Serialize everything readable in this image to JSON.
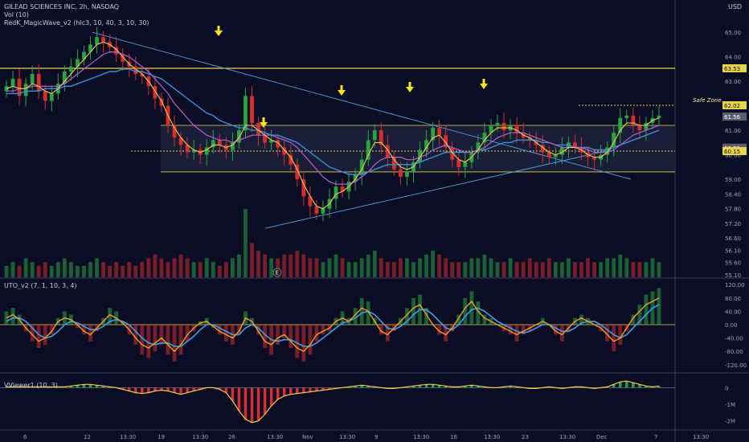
{
  "header": {
    "title": "GILEAD SCIENCES INC, 2h, NASDAQ",
    "indicator_vol": "Vol (10)",
    "indicator_wave": "RedK_MagicWave_v2 (hlc3, 10, 40, 3, 10, 30)",
    "currency": "USD"
  },
  "colors": {
    "background": "#0b0d24",
    "up": "#26a641",
    "down": "#d62d2d",
    "yellow_line": "#e8d44a",
    "trend": "#4aa3df",
    "wave_fast": "#f2c94c",
    "wave_slow": "#b65fcf",
    "wave_mid": "#3a8fd8"
  },
  "chart_data": [
    {
      "type": "candlestick",
      "panel": "price",
      "x_ticks": [
        "6",
        "12",
        "13:30",
        "19",
        "13:30",
        "26",
        "13:30",
        "Nov",
        "13:30",
        "9",
        "13:30",
        "16",
        "13:30",
        "23",
        "13:30",
        "Dec",
        "7",
        "13:30"
      ],
      "y_ticks": [
        "65.00",
        "64.00",
        "63.00",
        "62.00",
        "61.00",
        "60.00",
        "59.00",
        "58.40",
        "57.80",
        "57.20",
        "56.60",
        "56.10",
        "55.60",
        "55.10"
      ],
      "ylim": [
        55.0,
        65.4
      ],
      "price_tags": [
        {
          "label": "63.53",
          "value": 63.53,
          "style": "solid"
        },
        {
          "label": "62.02",
          "value": 62.02,
          "style": "dotted"
        },
        {
          "label": "61.56",
          "value": 61.56,
          "style": "tag"
        },
        {
          "label": "60.29",
          "value": 60.29,
          "style": "tag"
        },
        {
          "label": "60.15",
          "value": 60.15,
          "style": "dotted"
        }
      ],
      "annotation": "Safe Zone",
      "vol_marker": "E",
      "close_series": [
        62.8,
        63.1,
        62.4,
        62.9,
        63.3,
        62.6,
        62.2,
        62.5,
        62.9,
        63.4,
        63.6,
        63.9,
        64.2,
        64.5,
        64.8,
        64.6,
        64.4,
        64.1,
        63.8,
        63.6,
        63.3,
        63.2,
        62.8,
        62.3,
        62.0,
        61.2,
        60.7,
        60.4,
        60.1,
        60.2,
        60.0,
        60.3,
        60.6,
        60.4,
        60.2,
        60.5,
        61.0,
        62.4,
        61.3,
        60.8,
        60.5,
        60.6,
        60.3,
        60.0,
        59.6,
        59.0,
        58.3,
        57.9,
        57.6,
        57.8,
        58.2,
        58.7,
        58.5,
        58.9,
        59.2,
        59.8,
        60.6,
        61.0,
        60.4,
        59.9,
        59.4,
        59.1,
        59.3,
        59.7,
        60.2,
        60.6,
        61.1,
        60.8,
        60.3,
        59.8,
        59.5,
        59.7,
        60.1,
        60.5,
        60.9,
        61.2,
        61.3,
        61.0,
        61.2,
        60.9,
        60.7,
        60.6,
        60.4,
        60.1,
        59.9,
        60.0,
        60.3,
        60.5,
        60.3,
        60.1,
        59.9,
        59.8,
        60.0,
        60.3,
        60.9,
        61.5,
        61.6,
        61.2,
        61.0,
        61.3,
        61.5,
        61.6
      ],
      "ma_fast": [
        62.7,
        62.8,
        62.7,
        62.7,
        62.9,
        62.8,
        62.6,
        62.5,
        62.7,
        63.0,
        63.3,
        63.6,
        63.9,
        64.2,
        64.5,
        64.6,
        64.5,
        64.3,
        64.0,
        63.7,
        63.5,
        63.3,
        63.0,
        62.6,
        62.2,
        61.6,
        61.1,
        60.7,
        60.4,
        60.2,
        60.1,
        60.2,
        60.4,
        60.4,
        60.3,
        60.4,
        60.7,
        61.2,
        61.2,
        61.0,
        60.8,
        60.6,
        60.5,
        60.2,
        59.9,
        59.4,
        58.8,
        58.3,
        57.9,
        57.8,
        58.0,
        58.4,
        58.5,
        58.7,
        59.0,
        59.4,
        60.0,
        60.5,
        60.5,
        60.2,
        59.8,
        59.5,
        59.4,
        59.5,
        59.9,
        60.3,
        60.7,
        60.8,
        60.5,
        60.1,
        59.8,
        59.7,
        59.9,
        60.2,
        60.6,
        60.9,
        61.1,
        61.1,
        61.1,
        61.0,
        60.8,
        60.7,
        60.5,
        60.3,
        60.1,
        60.0,
        60.1,
        60.3,
        60.3,
        60.2,
        60.0,
        59.9,
        59.9,
        60.1,
        60.5,
        61.0,
        61.3,
        61.3,
        61.2,
        61.2,
        61.4,
        61.5
      ],
      "ma_slow": [
        62.6,
        62.6,
        62.7,
        62.7,
        62.8,
        62.8,
        62.8,
        62.8,
        62.8,
        62.9,
        63.1,
        63.3,
        63.5,
        63.7,
        63.9,
        64.1,
        64.2,
        64.2,
        64.1,
        64.0,
        63.8,
        63.6,
        63.4,
        63.1,
        62.8,
        62.5,
        62.1,
        61.8,
        61.5,
        61.2,
        61.0,
        60.8,
        60.7,
        60.6,
        60.6,
        60.5,
        60.6,
        60.7,
        60.8,
        60.8,
        60.8,
        60.8,
        60.7,
        60.6,
        60.5,
        60.3,
        60.0,
        59.7,
        59.4,
        59.1,
        58.9,
        58.8,
        58.8,
        58.8,
        58.9,
        59.1,
        59.3,
        59.6,
        59.8,
        59.9,
        59.9,
        59.9,
        59.8,
        59.8,
        59.9,
        60.0,
        60.2,
        60.3,
        60.4,
        60.3,
        60.2,
        60.1,
        60.1,
        60.2,
        60.3,
        60.5,
        60.7,
        60.8,
        60.9,
        60.9,
        60.9,
        60.8,
        60.7,
        60.6,
        60.5,
        60.4,
        60.3,
        60.3,
        60.3,
        60.3,
        60.2,
        60.1,
        60.1,
        60.1,
        60.2,
        60.4,
        60.6,
        60.8,
        60.9,
        61.0,
        61.1,
        61.2
      ],
      "ma_mid": [
        62.5,
        62.5,
        62.5,
        62.6,
        62.6,
        62.6,
        62.7,
        62.7,
        62.7,
        62.8,
        62.8,
        62.9,
        63.0,
        63.1,
        63.2,
        63.3,
        63.4,
        63.4,
        63.5,
        63.5,
        63.4,
        63.4,
        63.3,
        63.2,
        63.1,
        62.9,
        62.7,
        62.5,
        62.3,
        62.1,
        61.9,
        61.7,
        61.6,
        61.4,
        61.3,
        61.2,
        61.1,
        61.1,
        61.0,
        61.0,
        60.9,
        60.8,
        60.8,
        60.7,
        60.6,
        60.5,
        60.3,
        60.1,
        59.9,
        59.7,
        59.5,
        59.4,
        59.3,
        59.2,
        59.2,
        59.2,
        59.3,
        59.4,
        59.5,
        59.6,
        59.6,
        59.6,
        59.6,
        59.6,
        59.7,
        59.8,
        59.9,
        60.0,
        60.1,
        60.1,
        60.1,
        60.1,
        60.1,
        60.2,
        60.2,
        60.3,
        60.4,
        60.5,
        60.5,
        60.6,
        60.6,
        60.6,
        60.6,
        60.5,
        60.5,
        60.4,
        60.4,
        60.4,
        60.3,
        60.3,
        60.3,
        60.2,
        60.2,
        60.2,
        60.3,
        60.4,
        60.5,
        60.6,
        60.7,
        60.8,
        60.9,
        61.0
      ]
    },
    {
      "type": "bar",
      "panel": "volume",
      "values": [
        3,
        4,
        3,
        5,
        4,
        3,
        4,
        3,
        4,
        5,
        4,
        3,
        3,
        4,
        5,
        4,
        3,
        4,
        3,
        4,
        3,
        4,
        5,
        6,
        5,
        4,
        5,
        6,
        5,
        4,
        4,
        5,
        4,
        3,
        4,
        5,
        6,
        18,
        9,
        7,
        6,
        5,
        5,
        6,
        6,
        7,
        6,
        5,
        5,
        4,
        5,
        6,
        5,
        4,
        4,
        5,
        6,
        7,
        5,
        4,
        4,
        5,
        5,
        4,
        5,
        6,
        7,
        6,
        5,
        4,
        4,
        4,
        5,
        5,
        6,
        5,
        4,
        4,
        5,
        4,
        4,
        5,
        4,
        4,
        5,
        4,
        4,
        5,
        4,
        4,
        5,
        4,
        4,
        5,
        5,
        6,
        5,
        4,
        4,
        4,
        5,
        4
      ]
    },
    {
      "type": "area",
      "panel": "UTO_v2",
      "title": "UTO_v2 (7, 1, 10, 3, 4)",
      "y_ticks": [
        "120.00",
        "80.00",
        "40.00",
        "0.00",
        "-40.00",
        "-80.00",
        "-120.00"
      ],
      "ylim": [
        -135,
        135
      ],
      "fast": [
        20,
        30,
        15,
        -10,
        -30,
        -50,
        -40,
        -20,
        10,
        20,
        15,
        0,
        -20,
        -30,
        -10,
        10,
        30,
        20,
        5,
        -15,
        -40,
        -60,
        -70,
        -55,
        -40,
        -60,
        -80,
        -60,
        -30,
        -10,
        5,
        10,
        -5,
        -20,
        -30,
        -40,
        -20,
        20,
        10,
        -20,
        -50,
        -60,
        -40,
        -30,
        -50,
        -70,
        -80,
        -60,
        -30,
        -20,
        -10,
        10,
        20,
        10,
        30,
        50,
        40,
        10,
        -20,
        -30,
        -10,
        10,
        30,
        50,
        60,
        30,
        0,
        -20,
        -30,
        -10,
        20,
        50,
        70,
        40,
        20,
        10,
        0,
        -10,
        -20,
        -30,
        -20,
        -10,
        0,
        10,
        0,
        -20,
        -30,
        -10,
        10,
        20,
        10,
        0,
        -10,
        -30,
        -50,
        -40,
        -10,
        20,
        40,
        60,
        70,
        80
      ],
      "slow": [
        10,
        20,
        20,
        10,
        -10,
        -30,
        -40,
        -35,
        -20,
        0,
        10,
        5,
        -5,
        -15,
        -15,
        -5,
        10,
        15,
        10,
        0,
        -20,
        -40,
        -55,
        -60,
        -55,
        -55,
        -65,
        -65,
        -50,
        -35,
        -15,
        0,
        0,
        -10,
        -20,
        -30,
        -30,
        -10,
        0,
        -10,
        -30,
        -45,
        -50,
        -45,
        -45,
        -55,
        -65,
        -65,
        -55,
        -40,
        -25,
        -10,
        5,
        10,
        20,
        35,
        40,
        30,
        10,
        -10,
        -15,
        -5,
        10,
        30,
        45,
        45,
        30,
        10,
        -10,
        -15,
        0,
        25,
        45,
        50,
        40,
        25,
        10,
        0,
        -10,
        -20,
        -25,
        -20,
        -10,
        0,
        0,
        -10,
        -20,
        -20,
        -10,
        5,
        10,
        10,
        0,
        -15,
        -30,
        -40,
        -30,
        -10,
        10,
        30,
        50,
        60
      ],
      "hist": [
        40,
        50,
        30,
        -20,
        -50,
        -70,
        -60,
        -30,
        20,
        40,
        30,
        -10,
        -30,
        -50,
        -20,
        20,
        50,
        40,
        10,
        -30,
        -60,
        -90,
        -100,
        -80,
        -60,
        -90,
        -110,
        -90,
        -50,
        -20,
        10,
        20,
        -10,
        -30,
        -50,
        -60,
        -30,
        40,
        20,
        -30,
        -70,
        -90,
        -60,
        -40,
        -70,
        -100,
        -110,
        -90,
        -50,
        -30,
        -20,
        20,
        40,
        20,
        50,
        80,
        70,
        20,
        -30,
        -50,
        -20,
        20,
        50,
        80,
        90,
        50,
        0,
        -30,
        -50,
        -20,
        30,
        80,
        100,
        70,
        30,
        20,
        0,
        -20,
        -30,
        -50,
        -30,
        -20,
        0,
        20,
        0,
        -30,
        -50,
        -20,
        20,
        30,
        20,
        0,
        -20,
        -50,
        -80,
        -60,
        -20,
        30,
        60,
        90,
        100,
        110
      ]
    },
    {
      "type": "area",
      "panel": "VViewer1",
      "title": "VViewer1 (10, 3)",
      "y_ticks": [
        "0",
        "-1M",
        "-2M"
      ],
      "ylim": [
        -2.4,
        0.6
      ],
      "values": [
        0.05,
        0.05,
        0.05,
        0.05,
        0.05,
        0.05,
        0.05,
        0.05,
        0.05,
        0.05,
        0.1,
        0.15,
        0.2,
        0.2,
        0.15,
        0.1,
        0.05,
        0,
        -0.1,
        -0.2,
        -0.3,
        -0.35,
        -0.3,
        -0.2,
        -0.15,
        -0.2,
        -0.3,
        -0.4,
        -0.3,
        -0.2,
        -0.1,
        0,
        0,
        -0.1,
        -0.3,
        -0.8,
        -1.4,
        -1.9,
        -2.1,
        -2.0,
        -1.6,
        -1.1,
        -0.7,
        -0.5,
        -0.4,
        -0.35,
        -0.3,
        -0.25,
        -0.2,
        -0.15,
        -0.1,
        -0.05,
        0,
        0.05,
        0.1,
        0.15,
        0.1,
        0.05,
        0,
        -0.05,
        -0.05,
        0,
        0.05,
        0.1,
        0.15,
        0.2,
        0.2,
        0.15,
        0.1,
        0.05,
        0.05,
        0.1,
        0.15,
        0.1,
        0.05,
        0,
        0,
        0.05,
        0.1,
        0.05,
        0,
        -0.05,
        -0.05,
        0,
        0.05,
        0,
        -0.05,
        0,
        0.05,
        0.05,
        0,
        -0.05,
        0,
        0.05,
        0.2,
        0.35,
        0.4,
        0.3,
        0.2,
        0.1,
        0.05,
        0.1
      ]
    }
  ]
}
